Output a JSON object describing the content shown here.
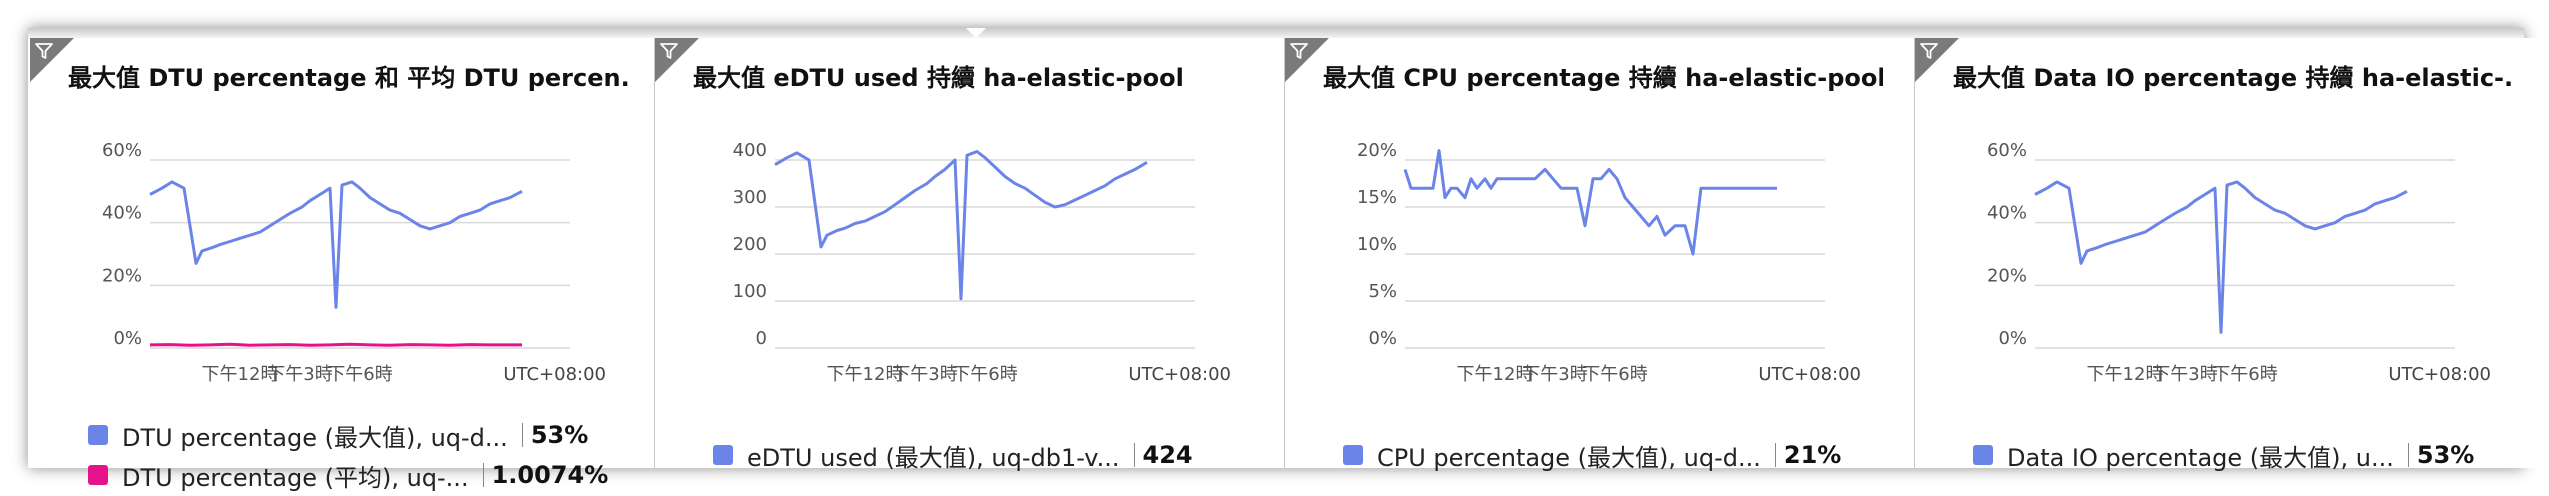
{
  "tiles": [
    {
      "title": "最大值 DTU percentage 和 平均 DTU percen...",
      "legend": [
        {
          "name": "DTU percentage (最大值), uq-d...",
          "value": "53%",
          "color": "#6b84e8"
        },
        {
          "name": "DTU percentage (平均), uq-...",
          "value": "1.0074%",
          "color": "#e5138b"
        }
      ]
    },
    {
      "title": "最大值 eDTU used 持續 ha-elastic-pool",
      "legend": [
        {
          "name": "eDTU used (最大值), uq-db1-v...",
          "value": "424",
          "color": "#6b84e8"
        }
      ]
    },
    {
      "title": "最大值 CPU percentage 持續 ha-elastic-pool",
      "legend": [
        {
          "name": "CPU percentage (最大值), uq-d...",
          "value": "21%",
          "color": "#6b84e8"
        }
      ]
    },
    {
      "title": "最大值 Data IO percentage 持續 ha-elastic-...",
      "legend": [
        {
          "name": "Data IO percentage (最大值), u...",
          "value": "53%",
          "color": "#6b84e8"
        }
      ]
    }
  ],
  "chart_data": [
    {
      "type": "line",
      "title": "最大值 DTU percentage 和 平均 DTU percen...",
      "x_ticks": [
        "下午12時",
        "下午3時",
        "下午6時"
      ],
      "x_tick_pos": [
        4.5,
        7.5,
        10.5
      ],
      "timezone_label": "UTC+08:00",
      "xlim": [
        0,
        21
      ],
      "y_ticks": [
        0,
        20,
        40,
        60
      ],
      "y_tick_labels": [
        "0%",
        "20%",
        "40%",
        "60%"
      ],
      "ylim": [
        0,
        60
      ],
      "grid": true,
      "series": [
        {
          "name": "DTU percentage (最大值), uq-d...",
          "color": "#6b84e8",
          "x": [
            0,
            0.6,
            1.1,
            1.7,
            2.3,
            2.6,
            3.1,
            3.5,
            4.0,
            4.5,
            5.0,
            5.5,
            6.0,
            6.5,
            7.0,
            7.6,
            8.0,
            8.5,
            9.0,
            9.3,
            9.6,
            10.1,
            10.5,
            11.0,
            11.5,
            12.0,
            12.5,
            13.0,
            13.5,
            14.0,
            14.5,
            15.0,
            15.5,
            16.0,
            16.5,
            17.0,
            17.5,
            18.0,
            18.6
          ],
          "values": [
            49,
            51,
            53,
            51,
            27,
            31,
            32,
            33,
            34,
            35,
            36,
            37,
            39,
            41,
            43,
            45,
            47,
            49,
            51,
            13,
            52,
            53,
            51,
            48,
            46,
            44,
            43,
            41,
            39,
            38,
            39,
            40,
            42,
            43,
            44,
            46,
            47,
            48,
            50
          ]
        },
        {
          "name": "DTU percentage (平均), uq-...",
          "color": "#e5138b",
          "x": [
            0,
            1,
            2,
            3,
            4,
            5,
            6,
            7,
            8,
            9,
            10,
            11,
            12,
            13,
            14,
            15,
            16,
            17,
            18,
            18.6
          ],
          "values": [
            1.0,
            1.1,
            0.9,
            1.0,
            1.2,
            0.9,
            1.0,
            1.1,
            0.9,
            1.0,
            1.2,
            1.0,
            0.9,
            1.1,
            1.0,
            0.9,
            1.1,
            1.0,
            1.0,
            1.0
          ]
        }
      ]
    },
    {
      "type": "line",
      "title": "最大值 eDTU used 持續 ha-elastic-pool",
      "x_ticks": [
        "下午12時",
        "下午3時",
        "下午6時"
      ],
      "x_tick_pos": [
        4.5,
        7.5,
        10.5
      ],
      "timezone_label": "UTC+08:00",
      "xlim": [
        0,
        21
      ],
      "y_ticks": [
        0,
        100,
        200,
        300,
        400
      ],
      "y_tick_labels": [
        "0",
        "100",
        "200",
        "300",
        "400"
      ],
      "ylim": [
        0,
        400
      ],
      "grid": true,
      "series": [
        {
          "name": "eDTU used (最大值), uq-db1-v...",
          "color": "#6b84e8",
          "x": [
            0,
            0.6,
            1.1,
            1.7,
            2.3,
            2.6,
            3.1,
            3.5,
            4.0,
            4.5,
            5.0,
            5.5,
            6.0,
            6.5,
            7.0,
            7.6,
            8.0,
            8.5,
            9.0,
            9.3,
            9.6,
            10.1,
            10.5,
            11.0,
            11.5,
            12.0,
            12.5,
            13.0,
            13.5,
            14.0,
            14.5,
            15.0,
            15.5,
            16.0,
            16.5,
            17.0,
            17.5,
            18.0,
            18.6
          ],
          "values": [
            390,
            405,
            415,
            400,
            215,
            240,
            250,
            255,
            265,
            270,
            280,
            290,
            305,
            320,
            335,
            350,
            365,
            380,
            400,
            105,
            410,
            418,
            405,
            385,
            365,
            350,
            340,
            325,
            310,
            300,
            305,
            315,
            325,
            335,
            345,
            360,
            370,
            380,
            395
          ]
        }
      ]
    },
    {
      "type": "line",
      "title": "最大值 CPU percentage 持續 ha-elastic-pool",
      "x_ticks": [
        "下午12時",
        "下午3時",
        "下午6時"
      ],
      "x_tick_pos": [
        4.5,
        7.5,
        10.5
      ],
      "timezone_label": "UTC+08:00",
      "xlim": [
        0,
        21
      ],
      "y_ticks": [
        0,
        5,
        10,
        15,
        20
      ],
      "y_tick_labels": [
        "0%",
        "5%",
        "10%",
        "15%",
        "20%"
      ],
      "ylim": [
        0,
        20
      ],
      "grid": true,
      "series": [
        {
          "name": "CPU percentage (最大值), uq-d...",
          "color": "#6b84e8",
          "x": [
            0,
            0.3,
            0.6,
            1.0,
            1.4,
            1.7,
            2.0,
            2.3,
            2.6,
            3.0,
            3.3,
            3.6,
            4.0,
            4.3,
            4.6,
            5.0,
            5.5,
            6.0,
            6.5,
            7.0,
            7.4,
            7.8,
            8.2,
            8.6,
            9.0,
            9.4,
            9.8,
            10.2,
            10.6,
            11.0,
            11.4,
            11.8,
            12.2,
            12.6,
            13.0,
            13.5,
            14.0,
            14.4,
            14.8,
            15.3,
            15.8,
            16.5,
            17.5,
            18.6
          ],
          "values": [
            19,
            17,
            17,
            17,
            17,
            21,
            16,
            17,
            17,
            16,
            18,
            17,
            18,
            17,
            18,
            18,
            18,
            18,
            18,
            19,
            18,
            17,
            17,
            17,
            13,
            18,
            18,
            19,
            18,
            16,
            15,
            14,
            13,
            14,
            12,
            13,
            13,
            10,
            17,
            17,
            17,
            17,
            17,
            17
          ]
        }
      ]
    },
    {
      "type": "line",
      "title": "最大值 Data IO percentage 持續 ha-elastic-...",
      "x_ticks": [
        "下午12時",
        "下午3時",
        "下午6時"
      ],
      "x_tick_pos": [
        4.5,
        7.5,
        10.5
      ],
      "timezone_label": "UTC+08:00",
      "xlim": [
        0,
        21
      ],
      "y_ticks": [
        0,
        20,
        40,
        60
      ],
      "y_tick_labels": [
        "0%",
        "20%",
        "40%",
        "60%"
      ],
      "ylim": [
        0,
        60
      ],
      "grid": true,
      "series": [
        {
          "name": "Data IO percentage (最大值), u...",
          "color": "#6b84e8",
          "x": [
            0,
            0.6,
            1.1,
            1.7,
            2.3,
            2.6,
            3.1,
            3.5,
            4.0,
            4.5,
            5.0,
            5.5,
            6.0,
            6.5,
            7.0,
            7.6,
            8.0,
            8.5,
            9.0,
            9.3,
            9.6,
            10.1,
            10.5,
            11.0,
            11.5,
            12.0,
            12.5,
            13.0,
            13.5,
            14.0,
            14.5,
            15.0,
            15.5,
            16.0,
            16.5,
            17.0,
            17.5,
            18.0,
            18.6
          ],
          "values": [
            49,
            51,
            53,
            51,
            27,
            31,
            32,
            33,
            34,
            35,
            36,
            37,
            39,
            41,
            43,
            45,
            47,
            49,
            51,
            5,
            52,
            53,
            51,
            48,
            46,
            44,
            43,
            41,
            39,
            38,
            39,
            40,
            42,
            43,
            44,
            46,
            47,
            48,
            50
          ]
        }
      ]
    }
  ]
}
